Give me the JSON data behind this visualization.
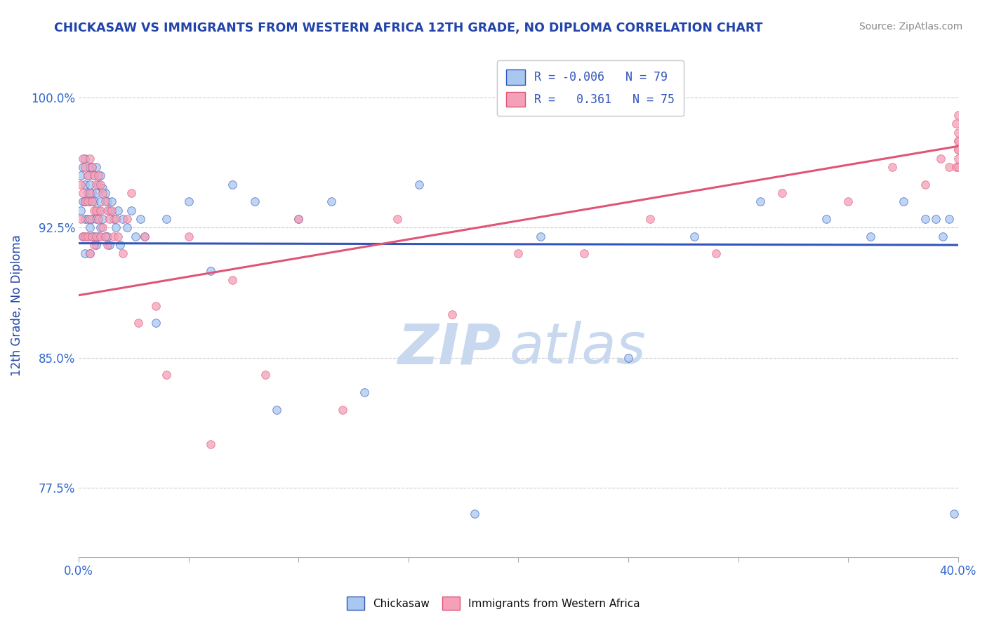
{
  "title": "CHICKASAW VS IMMIGRANTS FROM WESTERN AFRICA 12TH GRADE, NO DIPLOMA CORRELATION CHART",
  "source_text": "Source: ZipAtlas.com",
  "ylabel": "12th Grade, No Diploma",
  "xlim": [
    0.0,
    0.4
  ],
  "ylim": [
    0.735,
    1.025
  ],
  "xticks": [
    0.0,
    0.05,
    0.1,
    0.15,
    0.2,
    0.25,
    0.3,
    0.35,
    0.4
  ],
  "xticklabels": [
    "0.0%",
    "",
    "",
    "",
    "",
    "",
    "",
    "",
    "40.0%"
  ],
  "yticks": [
    0.775,
    0.85,
    0.925,
    1.0
  ],
  "yticklabels": [
    "77.5%",
    "85.0%",
    "92.5%",
    "100.0%"
  ],
  "blue_R": -0.006,
  "blue_N": 79,
  "pink_R": 0.361,
  "pink_N": 75,
  "blue_color": "#A8C8F0",
  "pink_color": "#F4A0B8",
  "blue_line_color": "#3355BB",
  "pink_line_color": "#E05575",
  "blue_line_y0": 0.916,
  "blue_line_y1": 0.915,
  "pink_line_y0": 0.886,
  "pink_line_y1": 0.972,
  "watermark_zip": "ZIP",
  "watermark_atlas": "atlas",
  "watermark_color": "#c8d8ee",
  "legend_blue_label": "Chickasaw",
  "legend_pink_label": "Immigrants from Western Africa",
  "title_color": "#2244AA",
  "axis_label_color": "#2244AA",
  "tick_label_color": "#3366CC",
  "blue_scatter_x": [
    0.001,
    0.001,
    0.002,
    0.002,
    0.002,
    0.003,
    0.003,
    0.003,
    0.003,
    0.003,
    0.004,
    0.004,
    0.004,
    0.004,
    0.005,
    0.005,
    0.005,
    0.005,
    0.005,
    0.006,
    0.006,
    0.006,
    0.006,
    0.007,
    0.007,
    0.007,
    0.008,
    0.008,
    0.008,
    0.008,
    0.009,
    0.009,
    0.009,
    0.01,
    0.01,
    0.01,
    0.011,
    0.011,
    0.012,
    0.012,
    0.013,
    0.013,
    0.014,
    0.014,
    0.015,
    0.016,
    0.017,
    0.018,
    0.019,
    0.02,
    0.022,
    0.024,
    0.026,
    0.028,
    0.03,
    0.035,
    0.04,
    0.05,
    0.06,
    0.07,
    0.08,
    0.09,
    0.1,
    0.115,
    0.13,
    0.155,
    0.18,
    0.21,
    0.25,
    0.28,
    0.31,
    0.34,
    0.36,
    0.375,
    0.385,
    0.39,
    0.393,
    0.396,
    0.398
  ],
  "blue_scatter_y": [
    0.955,
    0.935,
    0.96,
    0.94,
    0.92,
    0.965,
    0.95,
    0.94,
    0.93,
    0.91,
    0.955,
    0.945,
    0.93,
    0.92,
    0.96,
    0.95,
    0.94,
    0.925,
    0.91,
    0.96,
    0.945,
    0.93,
    0.92,
    0.955,
    0.94,
    0.92,
    0.96,
    0.945,
    0.93,
    0.915,
    0.95,
    0.935,
    0.92,
    0.955,
    0.94,
    0.925,
    0.948,
    0.93,
    0.945,
    0.92,
    0.94,
    0.92,
    0.935,
    0.915,
    0.94,
    0.93,
    0.925,
    0.935,
    0.915,
    0.93,
    0.925,
    0.935,
    0.92,
    0.93,
    0.92,
    0.87,
    0.93,
    0.94,
    0.9,
    0.95,
    0.94,
    0.82,
    0.93,
    0.94,
    0.83,
    0.95,
    0.76,
    0.92,
    0.85,
    0.92,
    0.94,
    0.93,
    0.92,
    0.94,
    0.93,
    0.93,
    0.92,
    0.93,
    0.76
  ],
  "pink_scatter_x": [
    0.001,
    0.001,
    0.002,
    0.002,
    0.002,
    0.003,
    0.003,
    0.003,
    0.004,
    0.004,
    0.004,
    0.005,
    0.005,
    0.005,
    0.005,
    0.006,
    0.006,
    0.006,
    0.007,
    0.007,
    0.007,
    0.008,
    0.008,
    0.008,
    0.009,
    0.009,
    0.01,
    0.01,
    0.01,
    0.011,
    0.011,
    0.012,
    0.012,
    0.013,
    0.013,
    0.014,
    0.015,
    0.016,
    0.017,
    0.018,
    0.02,
    0.022,
    0.024,
    0.027,
    0.03,
    0.035,
    0.04,
    0.05,
    0.06,
    0.07,
    0.085,
    0.1,
    0.12,
    0.145,
    0.17,
    0.2,
    0.23,
    0.26,
    0.29,
    0.32,
    0.35,
    0.37,
    0.385,
    0.392,
    0.396,
    0.399,
    0.4,
    0.4,
    0.4,
    0.4,
    0.4,
    0.4,
    0.4,
    0.399,
    0.4
  ],
  "pink_scatter_y": [
    0.93,
    0.95,
    0.965,
    0.945,
    0.92,
    0.96,
    0.94,
    0.92,
    0.955,
    0.94,
    0.92,
    0.965,
    0.945,
    0.93,
    0.91,
    0.96,
    0.94,
    0.92,
    0.955,
    0.935,
    0.915,
    0.95,
    0.935,
    0.92,
    0.955,
    0.93,
    0.95,
    0.935,
    0.92,
    0.945,
    0.925,
    0.94,
    0.92,
    0.935,
    0.915,
    0.93,
    0.935,
    0.92,
    0.93,
    0.92,
    0.91,
    0.93,
    0.945,
    0.87,
    0.92,
    0.88,
    0.84,
    0.92,
    0.8,
    0.895,
    0.84,
    0.93,
    0.82,
    0.93,
    0.875,
    0.91,
    0.91,
    0.93,
    0.91,
    0.945,
    0.94,
    0.96,
    0.95,
    0.965,
    0.96,
    0.96,
    0.97,
    0.98,
    0.965,
    0.975,
    0.96,
    0.97,
    0.975,
    0.985,
    0.99
  ]
}
